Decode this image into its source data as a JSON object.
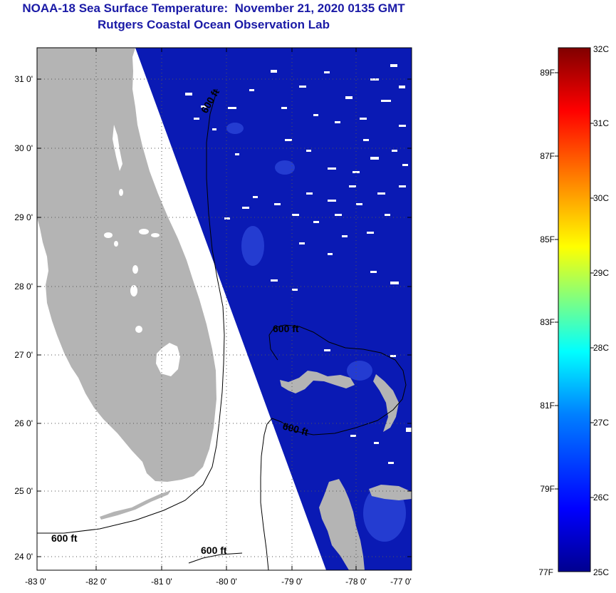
{
  "header": {
    "title_line1": "NOAA-18 Sea Surface Temperature:  November 21, 2020 0135 GMT",
    "title_line2": "Rutgers Coastal Ocean Observation Lab"
  },
  "map": {
    "lat_labels": [
      "31 0'",
      "30 0'",
      "29 0'",
      "28 0'",
      "27 0'",
      "26 0'",
      "25 0'",
      "24 0'"
    ],
    "lon_labels": [
      "-83 0'",
      "-82 0'",
      "-81 0'",
      "-80 0'",
      "-79 0'",
      "-78 0'",
      "-77 0'"
    ],
    "contour_labels": [
      "600 ft",
      "600 ft",
      "600 ft",
      "600 ft",
      "600 ft"
    ],
    "colors": {
      "land": "#b4b4b4",
      "ocean": "#0a1ab4",
      "cloud": "#ffffff"
    }
  },
  "colorbar": {
    "celsius_labels": [
      "32C",
      "31C",
      "30C",
      "29C",
      "28C",
      "27C",
      "26C",
      "25C"
    ],
    "fahrenheit_labels": [
      "89F",
      "87F",
      "85F",
      "83F",
      "81F",
      "79F",
      "77F"
    ],
    "min_c": 25,
    "max_c": 32,
    "palette": [
      "#00008f",
      "#0000ff",
      "#0080ff",
      "#00ffff",
      "#80ff80",
      "#ffff00",
      "#ff8000",
      "#ff0000",
      "#800000"
    ]
  }
}
